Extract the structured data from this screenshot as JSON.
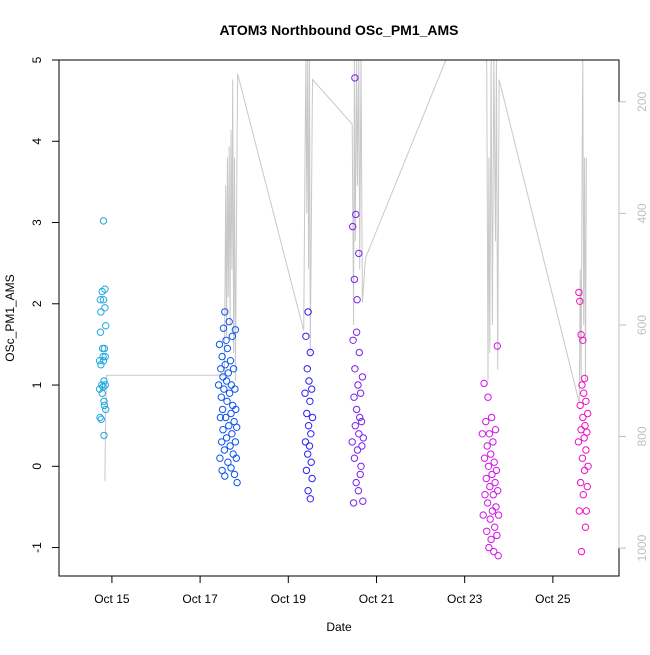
{
  "chart_data": {
    "type": "scatter",
    "title": "ATOM3 Northbound OSc_PM1_AMS",
    "xlabel": "Date",
    "ylabel": "OSc_PM1_AMS",
    "ylim": [
      -1.35,
      5.0
    ],
    "xlim": [
      13.8,
      26.5
    ],
    "x_ticks": [
      {
        "value": 15,
        "label": "Oct 15"
      },
      {
        "value": 17,
        "label": "Oct 17"
      },
      {
        "value": 19,
        "label": "Oct 19"
      },
      {
        "value": 21,
        "label": "Oct 21"
      },
      {
        "value": 23,
        "label": "Oct 23"
      },
      {
        "value": 25,
        "label": "Oct 25"
      }
    ],
    "y_ticks": [
      -1,
      0,
      1,
      2,
      3,
      4,
      5
    ],
    "right_axis": {
      "note": "secondary axis, reversed (values increase downward)",
      "range_top": 125,
      "range_bottom": 1050,
      "ticks": [
        200,
        400,
        600,
        800,
        1000
      ]
    },
    "colors": {
      "line": "#c8c8c8",
      "right_axis": "#bfbfbf",
      "cluster_1": "#21a9e1",
      "cluster_2": "#0e55ee",
      "cluster_3": "#2f1ff0",
      "cluster_4": "#7b22ee",
      "cluster_5": "#d016ea",
      "cluster_6": "#ee12c4"
    },
    "secondary_series": [
      {
        "x": 14.84,
        "y2": 880
      },
      {
        "x": 14.86,
        "y2": 750
      },
      {
        "x": 14.88,
        "y2": 690
      },
      {
        "x": 17.55,
        "y2": 690
      },
      {
        "x": 17.58,
        "y2": 350
      },
      {
        "x": 17.6,
        "y2": 620
      },
      {
        "x": 17.62,
        "y2": 300
      },
      {
        "x": 17.64,
        "y2": 550
      },
      {
        "x": 17.66,
        "y2": 280
      },
      {
        "x": 17.68,
        "y2": 600
      },
      {
        "x": 17.7,
        "y2": 250
      },
      {
        "x": 17.72,
        "y2": 500
      },
      {
        "x": 17.74,
        "y2": 160
      },
      {
        "x": 17.76,
        "y2": 650
      },
      {
        "x": 17.78,
        "y2": 300
      },
      {
        "x": 17.8,
        "y2": 700
      },
      {
        "x": 17.85,
        "y2": 150
      },
      {
        "x": 19.35,
        "y2": 610
      },
      {
        "x": 19.38,
        "y2": 300
      },
      {
        "x": 19.4,
        "y2": 120
      },
      {
        "x": 19.42,
        "y2": 400
      },
      {
        "x": 19.44,
        "y2": 120
      },
      {
        "x": 19.46,
        "y2": 500
      },
      {
        "x": 19.48,
        "y2": 120
      },
      {
        "x": 19.5,
        "y2": 650
      },
      {
        "x": 19.55,
        "y2": 160
      },
      {
        "x": 20.45,
        "y2": 240
      },
      {
        "x": 20.48,
        "y2": 600
      },
      {
        "x": 20.5,
        "y2": 120
      },
      {
        "x": 20.52,
        "y2": 450
      },
      {
        "x": 20.55,
        "y2": 120
      },
      {
        "x": 20.57,
        "y2": 350
      },
      {
        "x": 20.6,
        "y2": 120
      },
      {
        "x": 20.62,
        "y2": 500
      },
      {
        "x": 20.65,
        "y2": 120
      },
      {
        "x": 20.68,
        "y2": 560
      },
      {
        "x": 20.75,
        "y2": 480
      },
      {
        "x": 22.6,
        "y2": 120
      },
      {
        "x": 23.5,
        "y2": 120
      },
      {
        "x": 23.53,
        "y2": 700
      },
      {
        "x": 23.55,
        "y2": 300
      },
      {
        "x": 23.57,
        "y2": 650
      },
      {
        "x": 23.6,
        "y2": 120
      },
      {
        "x": 23.63,
        "y2": 600
      },
      {
        "x": 23.66,
        "y2": 120
      },
      {
        "x": 23.7,
        "y2": 450
      },
      {
        "x": 23.72,
        "y2": 120
      },
      {
        "x": 23.75,
        "y2": 680
      },
      {
        "x": 23.78,
        "y2": 160
      },
      {
        "x": 25.6,
        "y2": 740
      },
      {
        "x": 25.62,
        "y2": 500
      },
      {
        "x": 25.64,
        "y2": 700
      },
      {
        "x": 25.66,
        "y2": 350
      },
      {
        "x": 25.68,
        "y2": 120
      },
      {
        "x": 25.7,
        "y2": 600
      },
      {
        "x": 25.72,
        "y2": 300
      },
      {
        "x": 25.74,
        "y2": 700
      },
      {
        "x": 25.76,
        "y2": 300
      }
    ],
    "clusters": [
      {
        "name": "cluster_1",
        "color_key": "cluster_1",
        "points": [
          {
            "x": 14.72,
            "y": 1.3
          },
          {
            "x": 14.72,
            "y": 0.95
          },
          {
            "x": 14.73,
            "y": 0.6
          },
          {
            "x": 14.74,
            "y": 2.05
          },
          {
            "x": 14.74,
            "y": 1.65
          },
          {
            "x": 14.75,
            "y": 1.9
          },
          {
            "x": 14.75,
            "y": 1.25
          },
          {
            "x": 14.76,
            "y": 0.58
          },
          {
            "x": 14.77,
            "y": 1.0
          },
          {
            "x": 14.78,
            "y": 0.9
          },
          {
            "x": 14.78,
            "y": 2.15
          },
          {
            "x": 14.79,
            "y": 1.45
          },
          {
            "x": 14.8,
            "y": 1.35
          },
          {
            "x": 14.8,
            "y": 0.98
          },
          {
            "x": 14.81,
            "y": 3.02
          },
          {
            "x": 14.81,
            "y": 2.05
          },
          {
            "x": 14.81,
            "y": 1.3
          },
          {
            "x": 14.82,
            "y": 1.05
          },
          {
            "x": 14.82,
            "y": 0.8
          },
          {
            "x": 14.82,
            "y": 0.38
          },
          {
            "x": 14.83,
            "y": 1.45
          },
          {
            "x": 14.83,
            "y": 0.75
          },
          {
            "x": 14.84,
            "y": 2.18
          },
          {
            "x": 14.84,
            "y": 1.95
          },
          {
            "x": 14.85,
            "y": 1.35
          },
          {
            "x": 14.85,
            "y": 1.0
          },
          {
            "x": 14.86,
            "y": 0.7
          },
          {
            "x": 14.86,
            "y": 1.73
          }
        ]
      },
      {
        "name": "cluster_2",
        "color_key": "cluster_2",
        "points": [
          {
            "x": 17.42,
            "y": 1.0
          },
          {
            "x": 17.44,
            "y": 1.5
          },
          {
            "x": 17.45,
            "y": 0.1
          },
          {
            "x": 17.46,
            "y": 0.6
          },
          {
            "x": 17.47,
            "y": 1.2
          },
          {
            "x": 17.48,
            "y": 0.85
          },
          {
            "x": 17.49,
            "y": 0.3
          },
          {
            "x": 17.5,
            "y": -0.05
          },
          {
            "x": 17.5,
            "y": 1.35
          },
          {
            "x": 17.51,
            "y": 0.7
          },
          {
            "x": 17.52,
            "y": 1.1
          },
          {
            "x": 17.52,
            "y": 0.45
          },
          {
            "x": 17.53,
            "y": 1.7
          },
          {
            "x": 17.54,
            "y": 0.95
          },
          {
            "x": 17.55,
            "y": 0.2
          },
          {
            "x": 17.56,
            "y": 1.9
          },
          {
            "x": 17.56,
            "y": -0.12
          },
          {
            "x": 17.57,
            "y": 1.25
          },
          {
            "x": 17.58,
            "y": 0.6
          },
          {
            "x": 17.59,
            "y": 1.55
          },
          {
            "x": 17.6,
            "y": 0.35
          },
          {
            "x": 17.6,
            "y": 1.05
          },
          {
            "x": 17.61,
            "y": 0.8
          },
          {
            "x": 17.62,
            "y": 1.45
          },
          {
            "x": 17.63,
            "y": 0.05
          },
          {
            "x": 17.64,
            "y": 1.15
          },
          {
            "x": 17.65,
            "y": 0.5
          },
          {
            "x": 17.66,
            "y": 1.78
          },
          {
            "x": 17.67,
            "y": 0.9
          },
          {
            "x": 17.68,
            "y": 0.25
          },
          {
            "x": 17.69,
            "y": 1.3
          },
          {
            "x": 17.7,
            "y": 0.65
          },
          {
            "x": 17.7,
            "y": -0.02
          },
          {
            "x": 17.71,
            "y": 1.0
          },
          {
            "x": 17.72,
            "y": 0.4
          },
          {
            "x": 17.73,
            "y": 1.6
          },
          {
            "x": 17.74,
            "y": 0.75
          },
          {
            "x": 17.75,
            "y": 0.15
          },
          {
            "x": 17.76,
            "y": 1.2
          },
          {
            "x": 17.77,
            "y": 0.55
          },
          {
            "x": 17.78,
            "y": -0.1
          },
          {
            "x": 17.79,
            "y": 0.95
          },
          {
            "x": 17.8,
            "y": 0.3
          },
          {
            "x": 17.8,
            "y": 1.68
          },
          {
            "x": 17.81,
            "y": 0.7
          },
          {
            "x": 17.82,
            "y": 0.1
          },
          {
            "x": 17.83,
            "y": 0.48
          },
          {
            "x": 17.84,
            "y": -0.2
          }
        ]
      },
      {
        "name": "cluster_3",
        "color_key": "cluster_3",
        "points": [
          {
            "x": 19.38,
            "y": 0.9
          },
          {
            "x": 19.39,
            "y": 0.3
          },
          {
            "x": 19.4,
            "y": 1.6
          },
          {
            "x": 19.41,
            "y": -0.05
          },
          {
            "x": 19.42,
            "y": 0.65
          },
          {
            "x": 19.43,
            "y": 1.2
          },
          {
            "x": 19.44,
            "y": 0.15
          },
          {
            "x": 19.45,
            "y": 1.9
          },
          {
            "x": 19.45,
            "y": -0.3
          },
          {
            "x": 19.46,
            "y": 0.5
          },
          {
            "x": 19.47,
            "y": 1.05
          },
          {
            "x": 19.48,
            "y": 0.25
          },
          {
            "x": 19.49,
            "y": 0.8
          },
          {
            "x": 19.5,
            "y": -0.4
          },
          {
            "x": 19.5,
            "y": 1.4
          },
          {
            "x": 19.51,
            "y": 0.4
          },
          {
            "x": 19.52,
            "y": 0.05
          },
          {
            "x": 19.53,
            "y": 0.95
          },
          {
            "x": 19.54,
            "y": -0.15
          },
          {
            "x": 19.55,
            "y": 0.6
          }
        ]
      },
      {
        "name": "cluster_4",
        "color_key": "cluster_4",
        "points": [
          {
            "x": 20.45,
            "y": 0.3
          },
          {
            "x": 20.46,
            "y": 2.95
          },
          {
            "x": 20.47,
            "y": 1.55
          },
          {
            "x": 20.48,
            "y": -0.45
          },
          {
            "x": 20.49,
            "y": 0.85
          },
          {
            "x": 20.5,
            "y": 2.3
          },
          {
            "x": 20.5,
            "y": 0.1
          },
          {
            "x": 20.51,
            "y": 4.78
          },
          {
            "x": 20.51,
            "y": 1.2
          },
          {
            "x": 20.52,
            "y": 0.5
          },
          {
            "x": 20.53,
            "y": 3.1
          },
          {
            "x": 20.54,
            "y": -0.2
          },
          {
            "x": 20.55,
            "y": 1.65
          },
          {
            "x": 20.55,
            "y": 0.7
          },
          {
            "x": 20.56,
            "y": 2.05
          },
          {
            "x": 20.57,
            "y": 0.2
          },
          {
            "x": 20.58,
            "y": 1.0
          },
          {
            "x": 20.59,
            "y": -0.3
          },
          {
            "x": 20.6,
            "y": 2.62
          },
          {
            "x": 20.6,
            "y": 0.4
          },
          {
            "x": 20.61,
            "y": 1.4
          },
          {
            "x": 20.62,
            "y": 0.6
          },
          {
            "x": 20.63,
            "y": -0.1
          },
          {
            "x": 20.64,
            "y": 0.9
          },
          {
            "x": 20.65,
            "y": 0.0
          },
          {
            "x": 20.66,
            "y": 0.55
          },
          {
            "x": 20.67,
            "y": 0.25
          },
          {
            "x": 20.68,
            "y": 1.1
          },
          {
            "x": 20.69,
            "y": -0.43
          },
          {
            "x": 20.7,
            "y": 0.35
          }
        ]
      },
      {
        "name": "cluster_5",
        "color_key": "cluster_5",
        "points": [
          {
            "x": 23.4,
            "y": 0.4
          },
          {
            "x": 23.42,
            "y": -0.6
          },
          {
            "x": 23.44,
            "y": 1.02
          },
          {
            "x": 23.45,
            "y": 0.1
          },
          {
            "x": 23.46,
            "y": -0.35
          },
          {
            "x": 23.48,
            "y": 0.55
          },
          {
            "x": 23.49,
            "y": -0.15
          },
          {
            "x": 23.5,
            "y": -0.8
          },
          {
            "x": 23.51,
            "y": 0.25
          },
          {
            "x": 23.52,
            "y": -0.45
          },
          {
            "x": 23.53,
            "y": 0.85
          },
          {
            "x": 23.54,
            "y": 0.0
          },
          {
            "x": 23.55,
            "y": -1.0
          },
          {
            "x": 23.56,
            "y": 0.4
          },
          {
            "x": 23.57,
            "y": -0.25
          },
          {
            "x": 23.58,
            "y": -0.65
          },
          {
            "x": 23.59,
            "y": 0.15
          },
          {
            "x": 23.6,
            "y": -0.9
          },
          {
            "x": 23.61,
            "y": 0.6
          },
          {
            "x": 23.62,
            "y": -0.1
          },
          {
            "x": 23.63,
            "y": -0.55
          },
          {
            "x": 23.64,
            "y": 0.3
          },
          {
            "x": 23.65,
            "y": -0.35
          },
          {
            "x": 23.66,
            "y": -1.05
          },
          {
            "x": 23.67,
            "y": 0.05
          },
          {
            "x": 23.68,
            "y": -0.75
          },
          {
            "x": 23.69,
            "y": -0.2
          },
          {
            "x": 23.7,
            "y": 0.45
          },
          {
            "x": 23.71,
            "y": -0.5
          },
          {
            "x": 23.72,
            "y": -0.05
          },
          {
            "x": 23.73,
            "y": -0.85
          },
          {
            "x": 23.74,
            "y": 1.48
          },
          {
            "x": 23.75,
            "y": -0.3
          },
          {
            "x": 23.76,
            "y": -1.1
          },
          {
            "x": 23.77,
            "y": -0.6
          }
        ]
      },
      {
        "name": "cluster_6",
        "color_key": "cluster_6",
        "points": [
          {
            "x": 25.58,
            "y": 0.3
          },
          {
            "x": 25.59,
            "y": 2.14
          },
          {
            "x": 25.6,
            "y": -0.55
          },
          {
            "x": 25.61,
            "y": 2.03
          },
          {
            "x": 25.62,
            "y": 0.75
          },
          {
            "x": 25.63,
            "y": -0.2
          },
          {
            "x": 25.64,
            "y": 1.62
          },
          {
            "x": 25.64,
            "y": 0.45
          },
          {
            "x": 25.65,
            "y": -1.05
          },
          {
            "x": 25.66,
            "y": 1.0
          },
          {
            "x": 25.67,
            "y": 0.1
          },
          {
            "x": 25.68,
            "y": 1.55
          },
          {
            "x": 25.68,
            "y": 0.6
          },
          {
            "x": 25.69,
            "y": -0.35
          },
          {
            "x": 25.7,
            "y": 0.9
          },
          {
            "x": 25.71,
            "y": 0.35
          },
          {
            "x": 25.72,
            "y": 1.08
          },
          {
            "x": 25.72,
            "y": -0.05
          },
          {
            "x": 25.73,
            "y": 0.5
          },
          {
            "x": 25.74,
            "y": -0.75
          },
          {
            "x": 25.75,
            "y": 0.8
          },
          {
            "x": 25.75,
            "y": 0.2
          },
          {
            "x": 25.76,
            "y": -0.55
          },
          {
            "x": 25.77,
            "y": 0.42
          },
          {
            "x": 25.78,
            "y": -0.25
          },
          {
            "x": 25.79,
            "y": 0.65
          },
          {
            "x": 25.8,
            "y": 0.0
          }
        ]
      }
    ]
  }
}
